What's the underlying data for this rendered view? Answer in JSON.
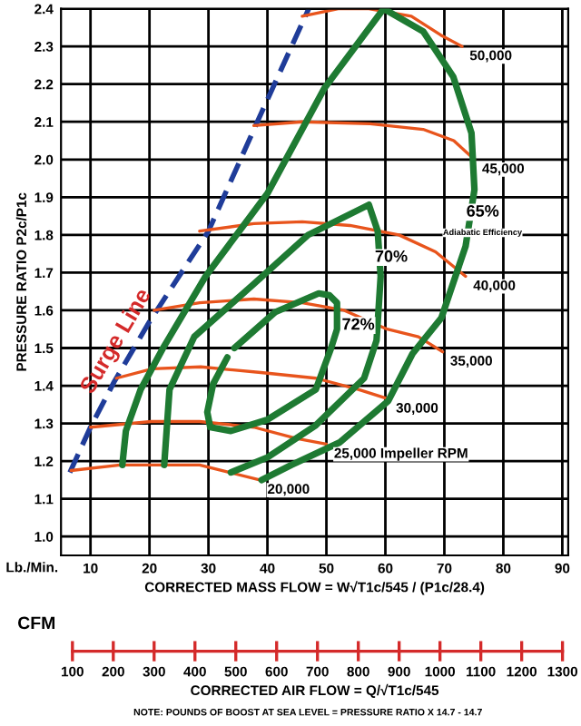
{
  "chart_data": {
    "type": "line",
    "ylabel": "PRESSURE RATIO P2c/P1c",
    "xlabel": "CORRECTED MASS FLOW = W√T1c/545 / (P1c/28.4)",
    "x2label": "CORRECTED AIR FLOW = Q/√T1c/545",
    "xlim": [
      5,
      91
    ],
    "xticks": [
      10,
      20,
      30,
      40,
      50,
      60,
      70,
      80,
      90
    ],
    "ylim": [
      0.95,
      2.4
    ],
    "yticks": [
      {
        "value": 1.0,
        "label": "1.0"
      },
      1.1,
      1.2,
      1.3,
      1.4,
      1.5,
      1.6,
      1.7,
      1.8,
      1.9,
      {
        "value": 2.0,
        "label": "2.0"
      },
      2.1,
      2.2,
      2.3,
      2.4
    ],
    "x2lim": [
      72,
      1314
    ],
    "x2ticks": [
      100,
      200,
      300,
      400,
      500,
      600,
      700,
      800,
      900,
      1000,
      1100,
      1200,
      1300
    ],
    "grid": true,
    "marker": "none",
    "series": [
      {
        "name": "Surge Line",
        "color": "#1f3c99",
        "line_style": "dashed",
        "x": [
          6.5,
          10,
          14,
          20,
          30,
          38,
          47
        ],
        "values": [
          1.17,
          1.29,
          1.41,
          1.57,
          1.81,
          2.09,
          2.4
        ]
      },
      {
        "name": "20,000",
        "color": "#e8541c",
        "x": [
          6.7,
          15,
          22.3,
          28.5,
          33.6,
          38.7
        ],
        "values": [
          1.175,
          1.19,
          1.19,
          1.19,
          1.17,
          1.15
        ]
      },
      {
        "name": "25,000 Impeller RPM",
        "color": "#e8541c",
        "x": [
          10,
          20.3,
          28.5,
          37.7,
          44.9,
          50
        ],
        "values": [
          1.29,
          1.305,
          1.305,
          1.29,
          1.26,
          1.245
        ]
      },
      {
        "name": "30,000",
        "color": "#e8541c",
        "x": [
          14.4,
          20.5,
          28.7,
          38.9,
          48.2,
          55.4,
          60.5
        ],
        "values": [
          1.42,
          1.445,
          1.45,
          1.435,
          1.42,
          1.39,
          1.365
        ]
      },
      {
        "name": "35,000",
        "color": "#e8541c",
        "x": [
          20.8,
          28.5,
          37.7,
          45.9,
          53,
          60.3,
          65.6,
          69.7
        ],
        "values": [
          1.6,
          1.62,
          1.63,
          1.62,
          1.6,
          1.55,
          1.53,
          1.49
        ]
      },
      {
        "name": "40,000",
        "color": "#e8541c",
        "x": [
          28.5,
          37.7,
          45.9,
          54,
          62.3,
          68.5,
          73.6
        ],
        "values": [
          1.81,
          1.83,
          1.835,
          1.825,
          1.8,
          1.755,
          1.69
        ]
      },
      {
        "name": "45,000",
        "color": "#e8541c",
        "x": [
          37.7,
          45.9,
          57.4,
          66.4,
          71.6,
          75.1
        ],
        "values": [
          2.09,
          2.1,
          2.095,
          2.08,
          2.05,
          2.0
        ]
      },
      {
        "name": "50,000",
        "color": "#e8541c",
        "x": [
          45.9,
          52,
          57.2,
          64.4,
          69.4,
          73
        ],
        "values": [
          2.38,
          2.4,
          2.4,
          2.38,
          2.33,
          2.3
        ]
      },
      {
        "color": "#1e7a32",
        "x": [
          15.4,
          16,
          18.5,
          22.3,
          29.5,
          40,
          49.7,
          59.7,
          66.4,
          71.5,
          74.6,
          75.1,
          73.6,
          69.5,
          64.6,
          60.5,
          52.3,
          44.1,
          39
        ],
        "values": [
          1.19,
          1.28,
          1.39,
          1.5,
          1.69,
          1.91,
          2.19,
          2.4,
          2.34,
          2.22,
          2.07,
          1.92,
          1.77,
          1.58,
          1.485,
          1.36,
          1.25,
          1.19,
          1.15
        ]
      },
      {
        "color": "#1e7a32",
        "x": [
          22.5,
          23.4,
          27.6,
          37.7,
          46.9,
          57.2,
          58.7,
          59.2,
          58.5,
          56.4,
          48.2,
          40,
          33.8
        ],
        "values": [
          1.19,
          1.39,
          1.53,
          1.67,
          1.8,
          1.88,
          1.81,
          1.69,
          1.52,
          1.42,
          1.295,
          1.21,
          1.17
        ]
      },
      {
        "color": "#1e7a32",
        "x": [
          34.4,
          41.3,
          48.7,
          50.5,
          51.8,
          51.8,
          50.8,
          48.2,
          40,
          33.8,
          30.3,
          29.8,
          30.8,
          33.2
        ],
        "values": [
          1.5,
          1.595,
          1.645,
          1.64,
          1.62,
          1.55,
          1.5,
          1.39,
          1.31,
          1.28,
          1.29,
          1.33,
          1.405,
          1.475
        ]
      }
    ],
    "annotations": [
      "Lb./Min.",
      "CFM",
      "NOTE: POUNDS OF BOOST AT SEA LEVEL = PRESSURE RATIO X 14.7 - 14.7",
      "Adiabatic Efficiency",
      {
        "text": "65%",
        "x": 76.5,
        "y": 1.86
      },
      {
        "text": "70%",
        "x": 61,
        "y": 1.74
      },
      {
        "text": "72%",
        "x": 55.4,
        "y": 1.56
      }
    ]
  }
}
